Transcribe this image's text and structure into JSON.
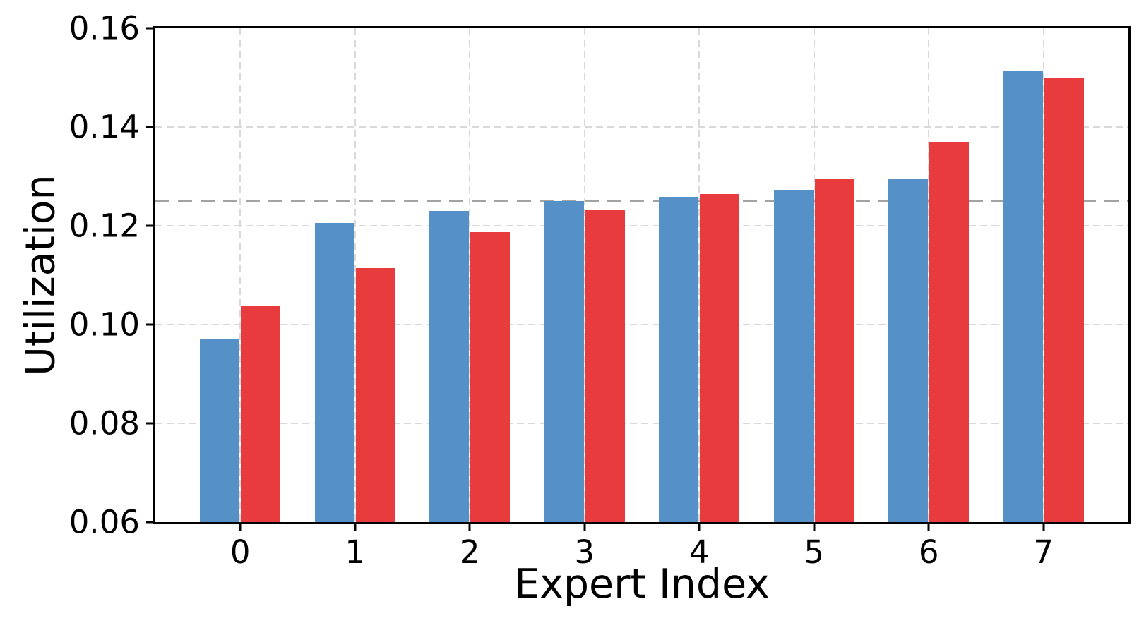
{
  "chart_data": {
    "type": "bar",
    "title": "",
    "xlabel": "Expert Index",
    "ylabel": "Utilization",
    "categories": [
      "0",
      "1",
      "2",
      "3",
      "4",
      "5",
      "6",
      "7"
    ],
    "series": [
      {
        "name": "blue-series",
        "color": "#5590C6",
        "values": [
          0.0972,
          0.1206,
          0.123,
          0.125,
          0.1259,
          0.1273,
          0.1295,
          0.1514
        ]
      },
      {
        "name": "red-series",
        "color": "#E83B3E",
        "values": [
          0.1039,
          0.1115,
          0.1187,
          0.1232,
          0.1264,
          0.1294,
          0.137,
          0.1499
        ]
      }
    ],
    "bar_width": 0.35,
    "ylim": [
      0.06,
      0.16
    ],
    "yticks": [
      0.06,
      0.08,
      0.1,
      0.12,
      0.14,
      0.16
    ],
    "ytick_labels": [
      "0.06",
      "0.08",
      "0.10",
      "0.12",
      "0.14",
      "0.16"
    ],
    "xlim": [
      -0.74,
      7.74
    ],
    "reference_line": {
      "value": 0.125,
      "color": "#a3a3a3",
      "style": "dashed"
    },
    "grid": true,
    "grid_color": "#d9d9d9",
    "legend_position": "none",
    "axis_color": "#000000",
    "background_color": "#ffffff"
  }
}
